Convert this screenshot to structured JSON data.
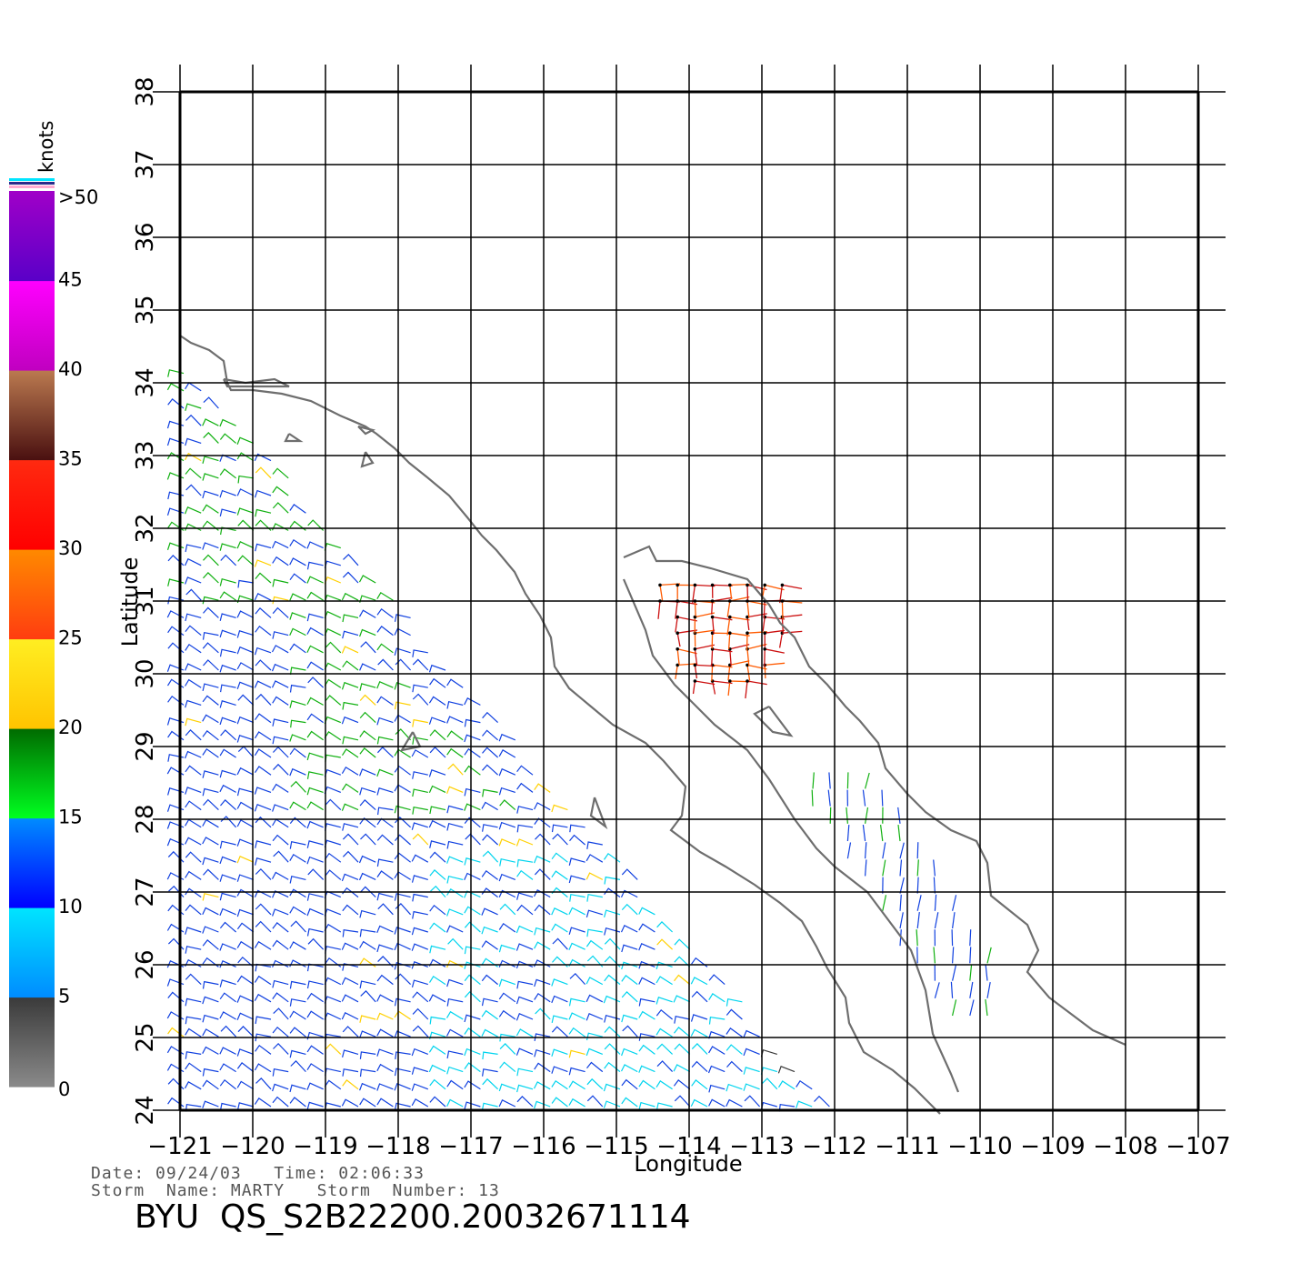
{
  "map": {
    "xlabel": "Longitude",
    "ylabel": "Latitude",
    "lon_ticks": [
      "−121",
      "−120",
      "−119",
      "−118",
      "−117",
      "−116",
      "−115",
      "−114",
      "−113",
      "−112",
      "−111",
      "−110",
      "−109",
      "−108",
      "−107"
    ],
    "lat_ticks": [
      "24",
      "25",
      "26",
      "27",
      "28",
      "29",
      "30",
      "31",
      "32",
      "33",
      "34",
      "35",
      "36",
      "37",
      "38"
    ],
    "lon_range": [
      -121,
      -107
    ],
    "lat_range": [
      24,
      38
    ],
    "land_outline_color": "#6e6e6e",
    "grid": true
  },
  "colorbar": {
    "unit": "knots",
    "labels": [
      "0",
      "5",
      "10",
      "15",
      "20",
      "25",
      "30",
      "35",
      "40",
      "45",
      ">50"
    ],
    "bands": [
      {
        "from": 0,
        "to": 5,
        "top": "#3a3a3a",
        "bottom": "#8a8a8a"
      },
      {
        "from": 5,
        "to": 10,
        "top": "#00e5ff",
        "bottom": "#008cff"
      },
      {
        "from": 10,
        "to": 15,
        "top": "#008cff",
        "bottom": "#0000ff"
      },
      {
        "from": 15,
        "to": 20,
        "top": "#006a00",
        "bottom": "#00ff20"
      },
      {
        "from": 20,
        "to": 25,
        "top": "#ffee22",
        "bottom": "#ffc400"
      },
      {
        "from": 25,
        "to": 30,
        "top": "#ff8a00",
        "bottom": "#ff3d10"
      },
      {
        "from": 30,
        "to": 35,
        "top": "#ff2a10",
        "bottom": "#ff0000"
      },
      {
        "from": 35,
        "to": 40,
        "top": "#bb7a50",
        "bottom": "#4a1010"
      },
      {
        "from": 40,
        "to": 45,
        "top": "#ff00ff",
        "bottom": "#c000c0"
      },
      {
        "from": 45,
        "to": 50,
        "top": "#a000c8",
        "bottom": "#5a00c8"
      }
    ],
    "cap_colors": [
      "#00e5ff",
      "#2a2a8a",
      "#ffaad0"
    ]
  },
  "footer": {
    "date_label": "Date:",
    "date": "09/24/03",
    "time_label": "Time:",
    "time": "02:06:33",
    "storm_name_label": "Storm  Name:",
    "storm_name": "MARTY",
    "storm_number_label": "Storm  Number:",
    "storm_number": "13",
    "file_id": "BYU  QS_S2B22200.20032671114"
  },
  "wind_colors": {
    "calm": "#3a3a3a",
    "light": "#00d4ee",
    "moderate": "#1040e0",
    "fresh": "#10b010",
    "strong": "#ffd000",
    "gale": "#ff5a00",
    "storm": "#cc1010",
    "rain_flag": "#000000"
  }
}
